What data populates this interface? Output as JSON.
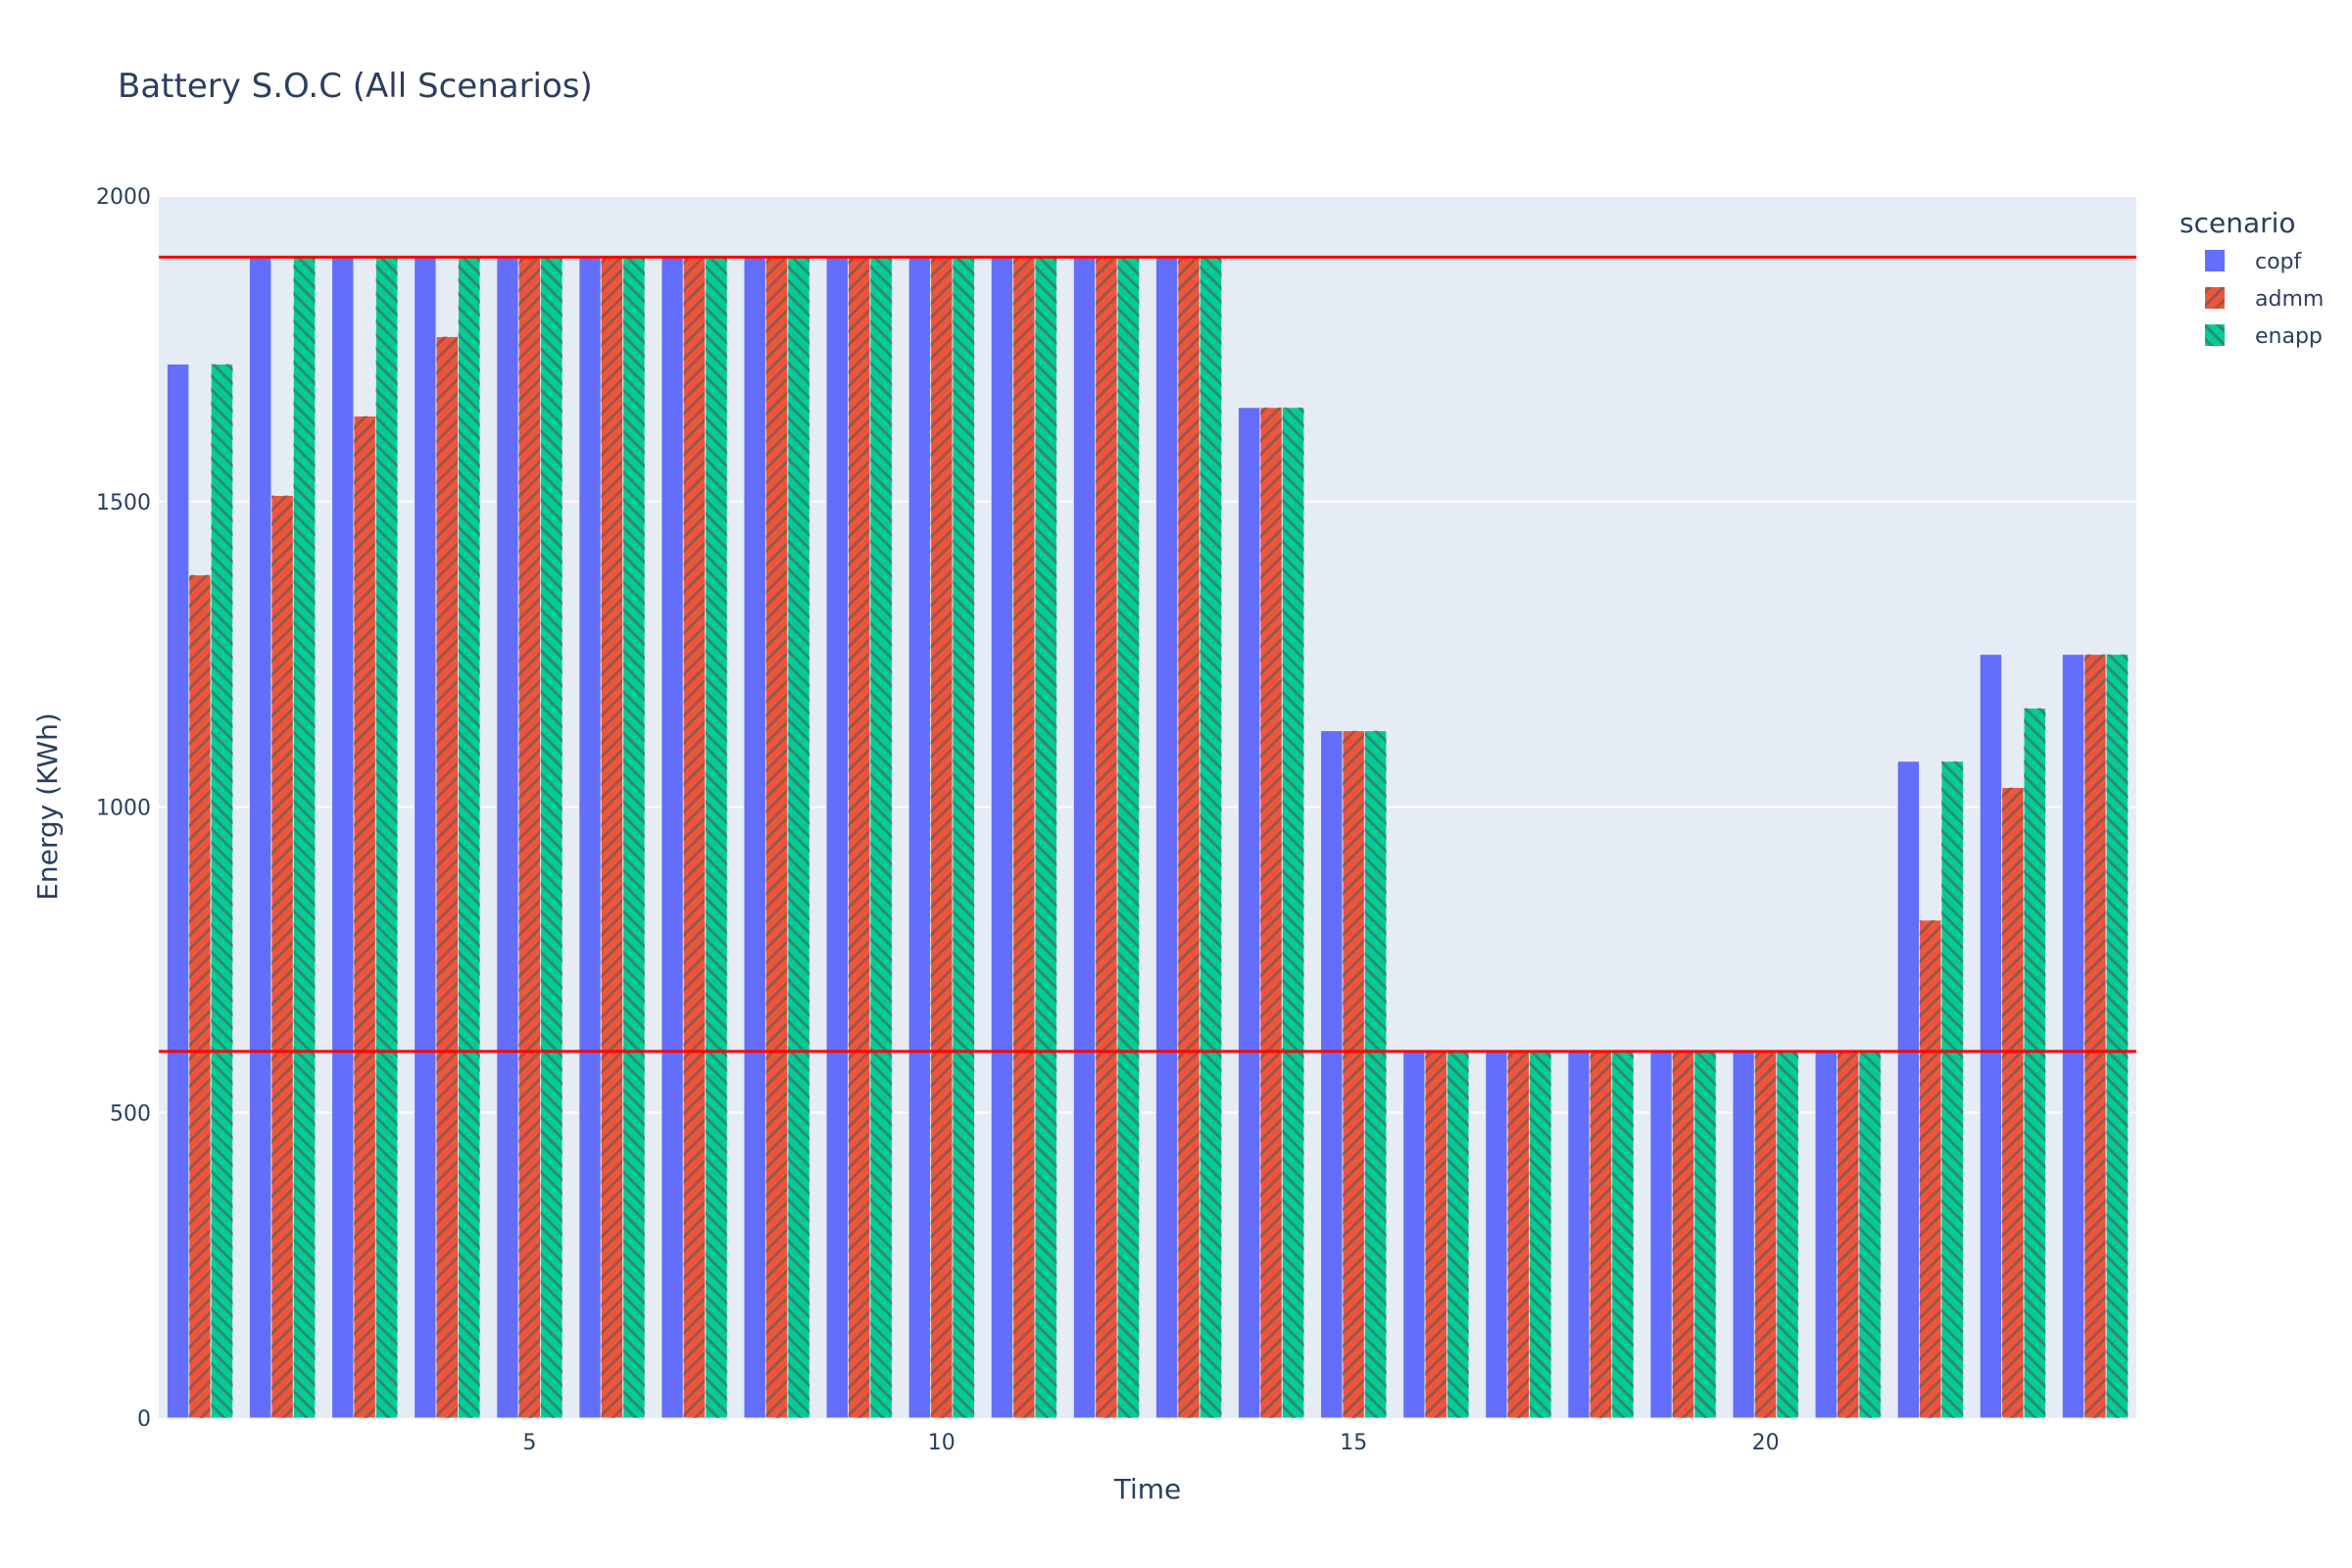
{
  "chart_data": {
    "type": "bar",
    "title": "Battery S.O.C (All Scenarios)",
    "xlabel": "Time",
    "ylabel": "Energy (KWh)",
    "ylim": [
      0,
      2000
    ],
    "xlim": [
      0.5,
      24.5
    ],
    "yticks": [
      0,
      500,
      1000,
      1500,
      2000
    ],
    "xticks": [
      5,
      10,
      15,
      20
    ],
    "categories": [
      1,
      2,
      3,
      4,
      5,
      6,
      7,
      8,
      9,
      10,
      11,
      12,
      13,
      14,
      15,
      16,
      17,
      18,
      19,
      20,
      21,
      22,
      23,
      24
    ],
    "legend_title": "scenario",
    "legend_position": "top-right",
    "series": [
      {
        "name": "copf",
        "color": "#636efa",
        "pattern": "none",
        "values": [
          1725,
          1900,
          1900,
          1900,
          1900,
          1900,
          1900,
          1900,
          1900,
          1900,
          1900,
          1900,
          1900,
          1654,
          1125,
          600,
          600,
          600,
          600,
          600,
          600,
          1075,
          1250,
          1250
        ]
      },
      {
        "name": "admm",
        "color": "#ef553b",
        "pattern": "forward-slash",
        "values": [
          1380,
          1510,
          1640,
          1770,
          1900,
          1900,
          1900,
          1900,
          1900,
          1900,
          1900,
          1900,
          1900,
          1654,
          1125,
          600,
          600,
          600,
          600,
          600,
          600,
          815,
          1032,
          1250
        ]
      },
      {
        "name": "enapp",
        "color": "#00cc96",
        "pattern": "back-slash",
        "values": [
          1725,
          1900,
          1900,
          1900,
          1900,
          1900,
          1900,
          1900,
          1900,
          1900,
          1900,
          1900,
          1900,
          1654,
          1125,
          600,
          600,
          600,
          600,
          600,
          600,
          1075,
          1162,
          1250
        ]
      }
    ],
    "hlines": [
      {
        "value": 1900,
        "color": "#ff0000"
      },
      {
        "value": 600,
        "color": "#ff0000"
      }
    ]
  }
}
